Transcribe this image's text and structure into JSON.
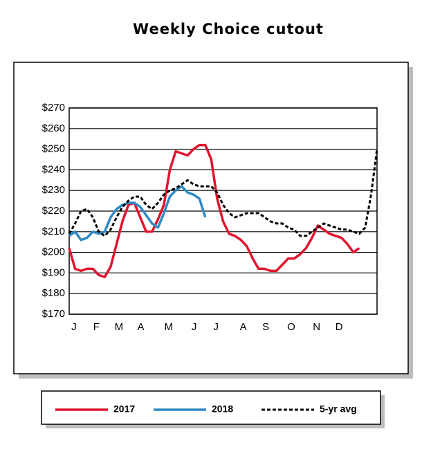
{
  "chart_data": {
    "type": "line",
    "title": "Weekly Choice cutout",
    "x": [
      0,
      1,
      2,
      3,
      4,
      5,
      6,
      7,
      8,
      9,
      10,
      11,
      12,
      13,
      14,
      15,
      16,
      17,
      18,
      19,
      20,
      21,
      22,
      23,
      24,
      25,
      26,
      27,
      28,
      29,
      30,
      31,
      32,
      33,
      34,
      35,
      36,
      37,
      38,
      39,
      40,
      41,
      42,
      43,
      44,
      45,
      46,
      47,
      48,
      49,
      50,
      51,
      52
    ],
    "xlim": [
      0,
      52
    ],
    "xticks": [
      {
        "value": 0.8,
        "label": "J"
      },
      {
        "value": 4.6,
        "label": "F"
      },
      {
        "value": 8.4,
        "label": "M"
      },
      {
        "value": 12.1,
        "label": "A"
      },
      {
        "value": 16.8,
        "label": "M"
      },
      {
        "value": 21.1,
        "label": "J"
      },
      {
        "value": 24.8,
        "label": "J"
      },
      {
        "value": 29.4,
        "label": "A"
      },
      {
        "value": 33.2,
        "label": "S"
      },
      {
        "value": 37.5,
        "label": "O"
      },
      {
        "value": 41.8,
        "label": "N"
      },
      {
        "value": 45.6,
        "label": "D"
      }
    ],
    "ylim": [
      170,
      270
    ],
    "yticks": [
      {
        "value": 170,
        "label": "$170"
      },
      {
        "value": 180,
        "label": "$180"
      },
      {
        "value": 190,
        "label": "$190"
      },
      {
        "value": 200,
        "label": "$200"
      },
      {
        "value": 210,
        "label": "$210"
      },
      {
        "value": 220,
        "label": "$220"
      },
      {
        "value": 230,
        "label": "$230"
      },
      {
        "value": 240,
        "label": "$240"
      },
      {
        "value": 250,
        "label": "$250"
      },
      {
        "value": 260,
        "label": "$260"
      },
      {
        "value": 270,
        "label": "$270"
      }
    ],
    "grid": true,
    "series": [
      {
        "name": "2017",
        "color": "#e0142d",
        "style": "solid",
        "values": [
          202,
          192,
          191,
          192,
          192,
          189,
          188,
          193,
          204,
          215,
          223,
          224,
          217,
          210,
          210,
          216,
          223,
          240,
          249,
          248,
          247,
          250,
          252,
          252,
          245,
          226,
          215,
          209,
          208,
          206,
          203,
          197,
          192,
          192,
          191,
          191,
          194,
          197,
          197,
          199,
          202,
          207,
          213,
          211,
          209,
          208,
          207,
          204,
          200,
          202,
          null,
          null,
          null
        ]
      },
      {
        "name": "2018",
        "color": "#2f8ac4",
        "style": "solid",
        "values": [
          208,
          210,
          206,
          207,
          210,
          209,
          210,
          217,
          221,
          223,
          224,
          224,
          222,
          218,
          214,
          212,
          219,
          227,
          230,
          232,
          229,
          228,
          226,
          217,
          null,
          null,
          null,
          null,
          null,
          null,
          null,
          null,
          null,
          null,
          null,
          null,
          null,
          null,
          null,
          null,
          null,
          null,
          null,
          null,
          null,
          null,
          null,
          null,
          null,
          null,
          null,
          null,
          null
        ]
      },
      {
        "name": "5-yr avg",
        "color": "#000000",
        "style": "dashed",
        "values": [
          209,
          214,
          220,
          221,
          217,
          210,
          208,
          211,
          217,
          222,
          225,
          227,
          227,
          223,
          221,
          224,
          228,
          230,
          231,
          233,
          235,
          233,
          232,
          232,
          232,
          229,
          223,
          219,
          217,
          218,
          219,
          219,
          219,
          217,
          215,
          214,
          214,
          212,
          211,
          208,
          208,
          210,
          212,
          214,
          213,
          212,
          211,
          211,
          210,
          209,
          212,
          228,
          250
        ]
      }
    ],
    "legend": "bottom"
  }
}
